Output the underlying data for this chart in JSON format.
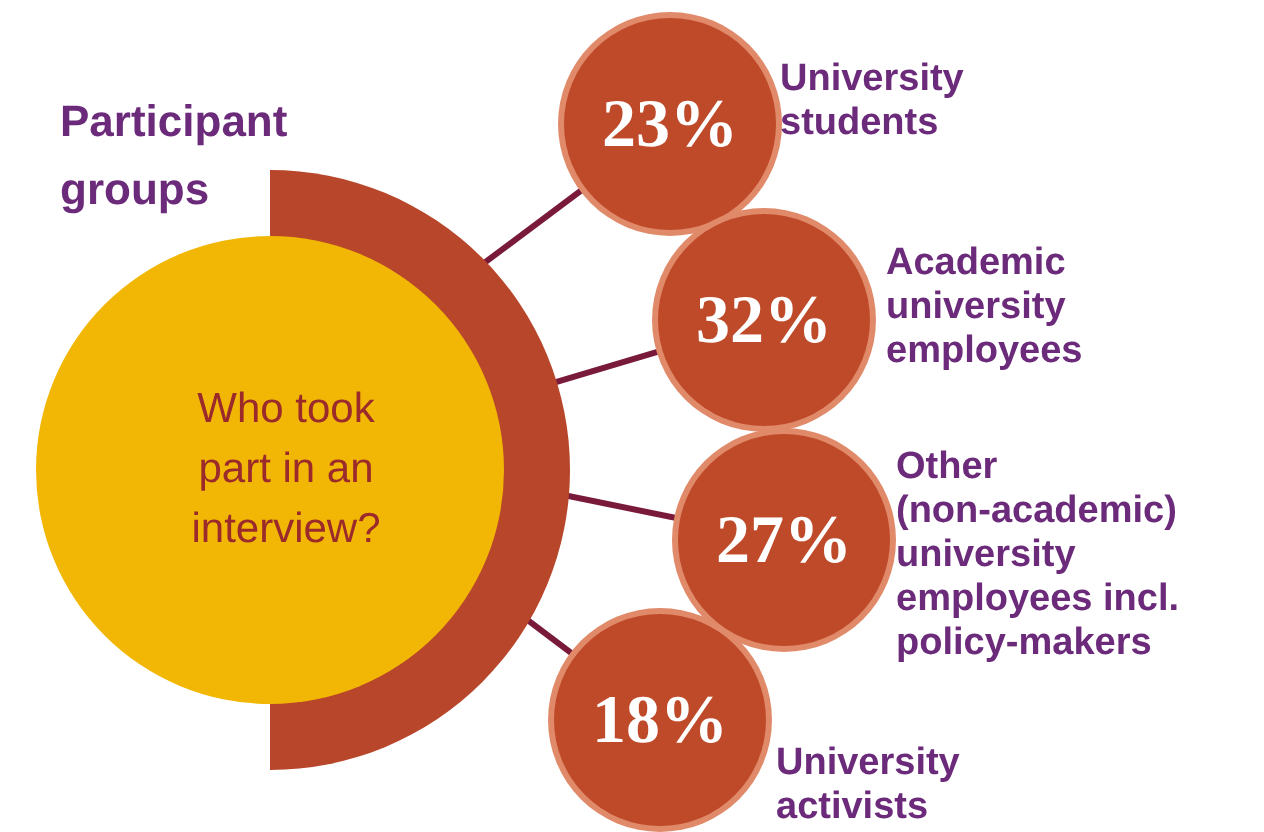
{
  "chart_data": {
    "type": "other",
    "title": "Participant groups",
    "subtitle": "Who took part in an interview?",
    "categories": [
      "University students",
      "Academic university employees",
      "Other (non-academic) university employees incl. policy-makers",
      "University activists"
    ],
    "values": [
      23,
      32,
      27,
      18
    ],
    "value_labels": [
      "23%",
      "32%",
      "27%",
      "18%"
    ],
    "colors": [
      "#bf4a2a",
      "#bf4a2a",
      "#bf4a2a",
      "#bf4a2a"
    ]
  }
}
